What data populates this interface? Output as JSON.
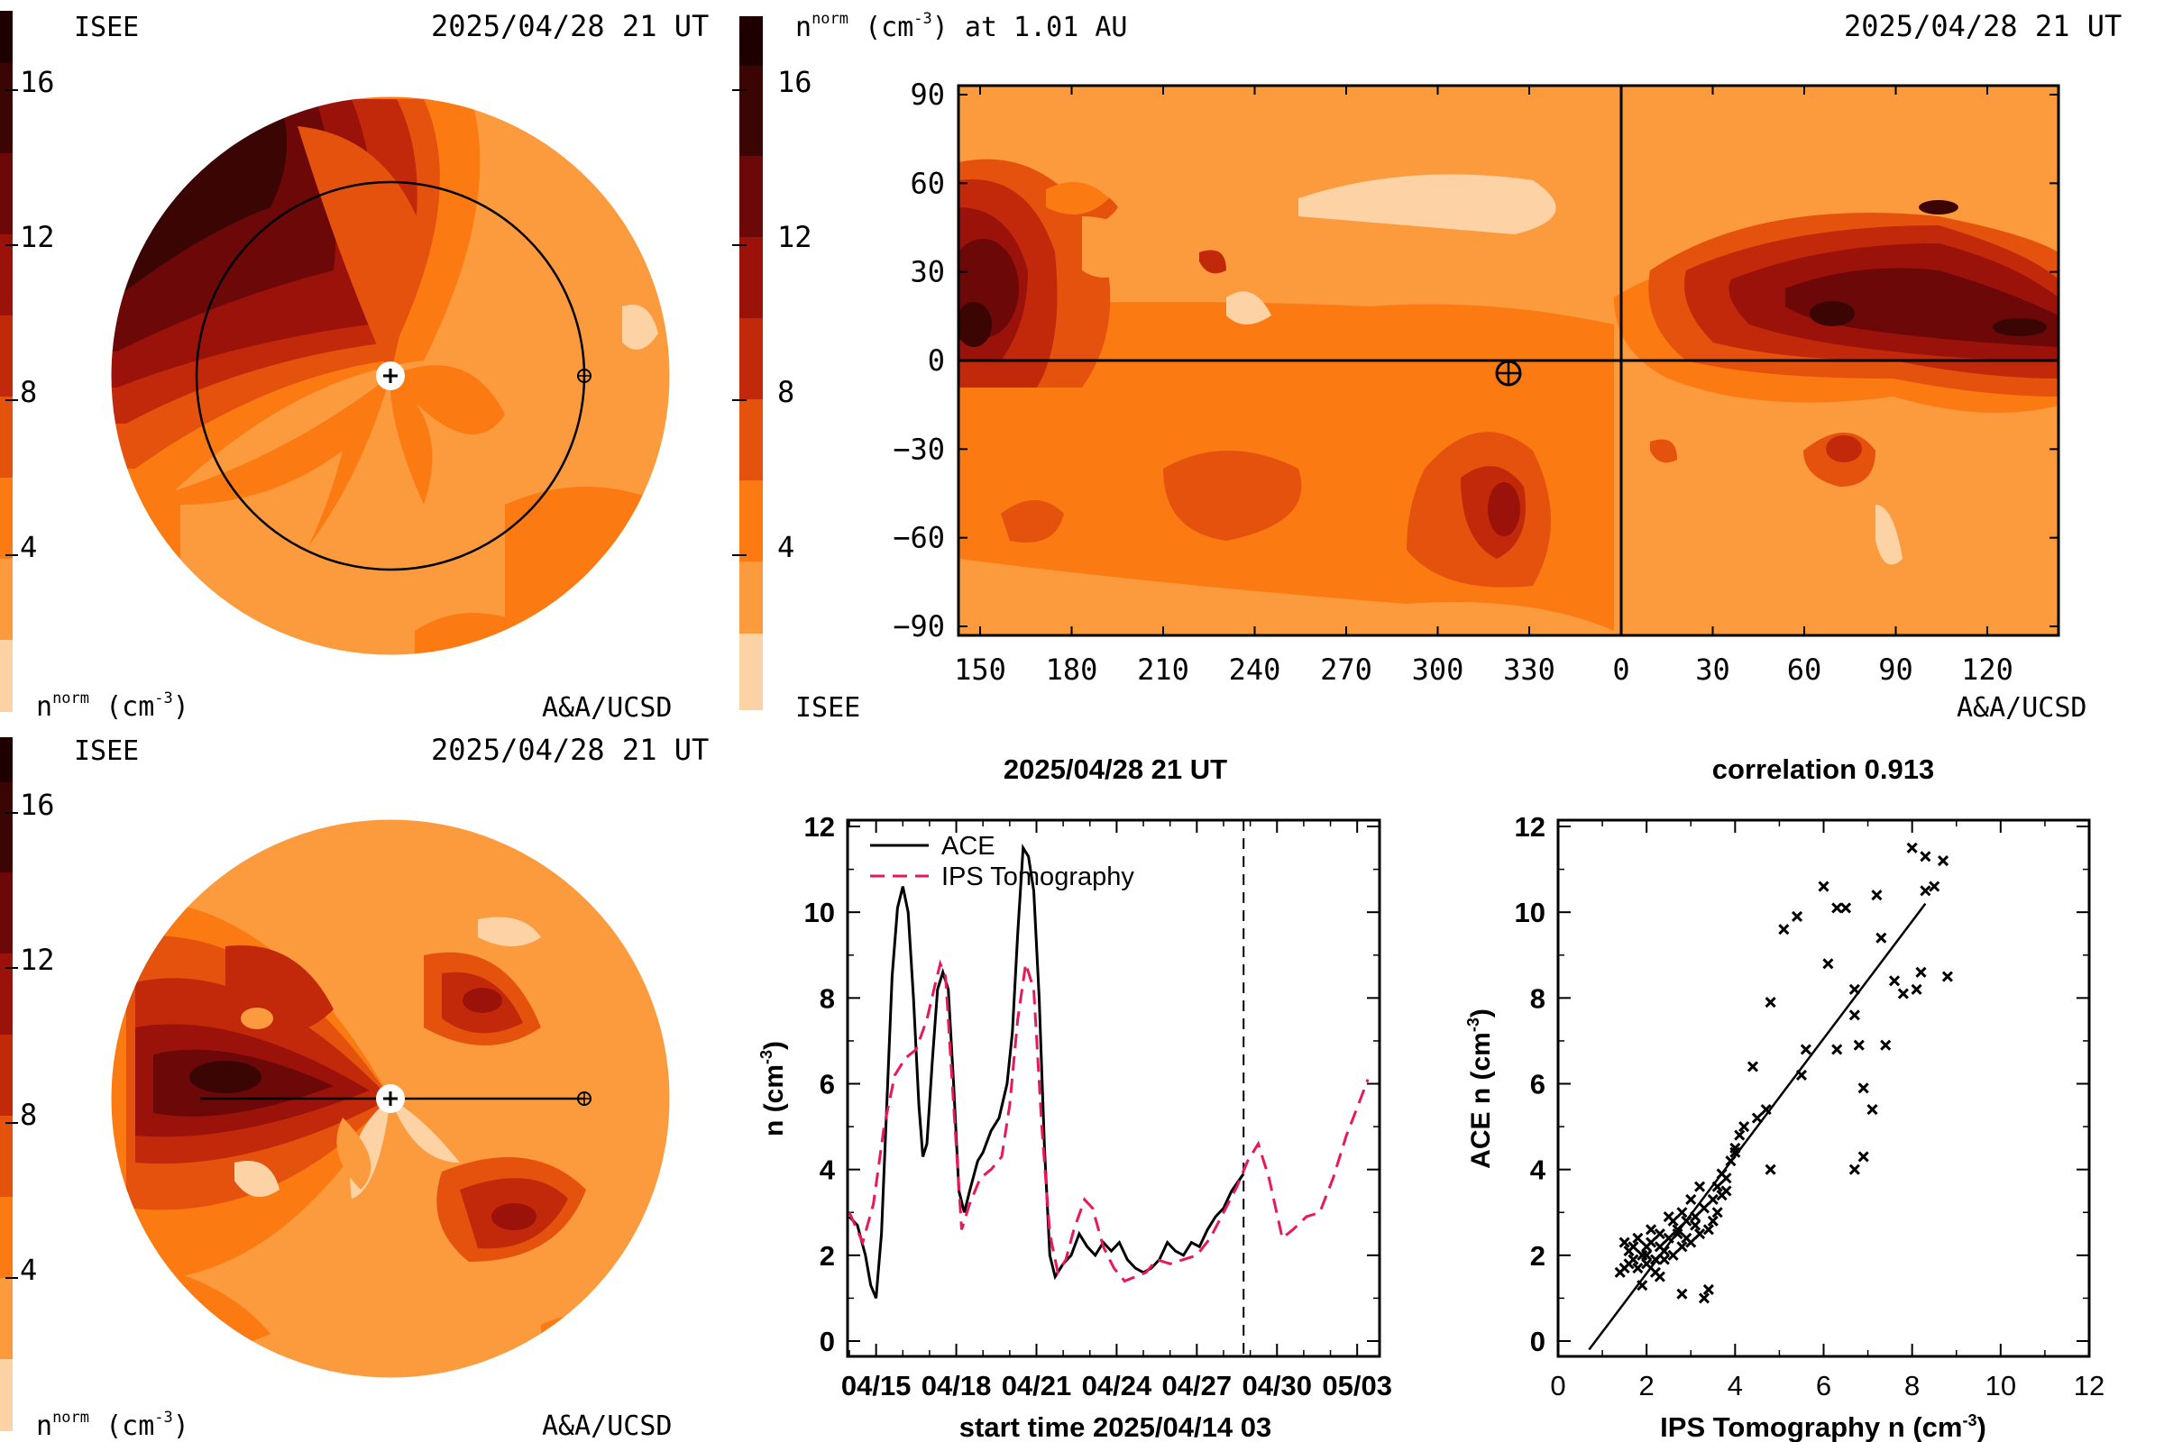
{
  "palette": [
    "#fdd3a6",
    "#fcad61",
    "#fc9a3e",
    "#fb7a12",
    "#e4520e",
    "#c2290b",
    "#9b120a",
    "#6c0807",
    "#3a0503",
    "#1f0000"
  ],
  "colorbar": {
    "ticks": [
      "4",
      "8",
      "12",
      "16"
    ],
    "top_left_label": "ISEE",
    "unit_label_prefix": "n",
    "unit_label_sup": "norm",
    "unit_label_suffix": " (cm",
    "unit_label_exp": "-3",
    "unit_label_close": ")"
  },
  "panel_tl": {
    "brand": "ISEE",
    "date": "2025/04/28 21 UT",
    "credit": "A&A/UCSD",
    "unit_prefix": "n",
    "unit_sup": "norm",
    "unit_suffix": " (cm",
    "unit_exp": "-3",
    "unit_close": ")"
  },
  "panel_bl": {
    "brand": "ISEE",
    "date": "2025/04/28 21 UT",
    "credit": "A&A/UCSD",
    "unit_prefix": "n",
    "unit_sup": "norm",
    "unit_suffix": " (cm",
    "unit_exp": "-3",
    "unit_close": ")"
  },
  "panel_map": {
    "title_prefix": "n",
    "title_sup": "norm",
    "title_suffix": " (cm",
    "title_exp": "-3",
    "title_tail": ") at 1.01 AU",
    "date": "2025/04/28 21 UT",
    "brand_bottom": "ISEE",
    "credit": "A&A/UCSD",
    "xticks": [
      "150",
      "180",
      "210",
      "240",
      "270",
      "300",
      "330",
      "0",
      "30",
      "60",
      "90",
      "120"
    ],
    "yticks": [
      "90",
      "60",
      "30",
      "0",
      "−30",
      "−60",
      "−90"
    ]
  },
  "chart_data": [
    {
      "type": "line",
      "title": "2025/04/28 21 UT",
      "xlabel": "start time 2025/04/14 03",
      "ylabel_prefix": "n (cm",
      "ylabel_exp": "-3",
      "ylabel_close": ")",
      "xticks": [
        "04/15",
        "04/18",
        "04/21",
        "04/24",
        "04/27",
        "04/30",
        "05/03"
      ],
      "yticks": [
        "0",
        "2",
        "4",
        "6",
        "8",
        "10",
        "12"
      ],
      "ylim": [
        0,
        12
      ],
      "xlim_days": [
        0,
        19.5
      ],
      "now_day": 14.75,
      "series": [
        {
          "name": "ACE",
          "color": "#000000",
          "style": "solid",
          "points": [
            [
              0,
              2.9
            ],
            [
              0.3,
              2.7
            ],
            [
              0.6,
              2.0
            ],
            [
              0.8,
              1.3
            ],
            [
              1.0,
              1.0
            ],
            [
              1.2,
              2.5
            ],
            [
              1.4,
              5.5
            ],
            [
              1.6,
              8.5
            ],
            [
              1.8,
              10.1
            ],
            [
              2.0,
              10.6
            ],
            [
              2.2,
              10.0
            ],
            [
              2.4,
              8.0
            ],
            [
              2.6,
              5.5
            ],
            [
              2.75,
              4.3
            ],
            [
              2.9,
              4.6
            ],
            [
              3.1,
              6.5
            ],
            [
              3.3,
              8.2
            ],
            [
              3.5,
              8.6
            ],
            [
              3.7,
              8.2
            ],
            [
              3.9,
              6.0
            ],
            [
              4.1,
              3.5
            ],
            [
              4.3,
              3.0
            ],
            [
              4.5,
              3.5
            ],
            [
              4.8,
              4.2
            ],
            [
              5.0,
              4.4
            ],
            [
              5.3,
              4.9
            ],
            [
              5.6,
              5.2
            ],
            [
              5.9,
              6.0
            ],
            [
              6.1,
              7.2
            ],
            [
              6.3,
              9.5
            ],
            [
              6.5,
              11.5
            ],
            [
              6.7,
              11.3
            ],
            [
              6.9,
              10.5
            ],
            [
              7.1,
              8.0
            ],
            [
              7.3,
              4.5
            ],
            [
              7.5,
              2.0
            ],
            [
              7.7,
              1.5
            ],
            [
              8.0,
              1.8
            ],
            [
              8.3,
              2.0
            ],
            [
              8.6,
              2.5
            ],
            [
              8.9,
              2.2
            ],
            [
              9.2,
              2.0
            ],
            [
              9.5,
              2.3
            ],
            [
              9.8,
              2.1
            ],
            [
              10.1,
              2.3
            ],
            [
              10.4,
              1.9
            ],
            [
              10.7,
              1.7
            ],
            [
              11.0,
              1.6
            ],
            [
              11.3,
              1.7
            ],
            [
              11.6,
              1.9
            ],
            [
              11.9,
              2.3
            ],
            [
              12.2,
              2.1
            ],
            [
              12.5,
              2.0
            ],
            [
              12.8,
              2.3
            ],
            [
              13.1,
              2.2
            ],
            [
              13.4,
              2.6
            ],
            [
              13.7,
              2.9
            ],
            [
              14.0,
              3.1
            ],
            [
              14.3,
              3.5
            ],
            [
              14.75,
              3.9
            ]
          ]
        },
        {
          "name": "IPS Tomography",
          "color": "#e8195a",
          "style": "dashed",
          "points": [
            [
              0,
              3.0
            ],
            [
              0.5,
              2.3
            ],
            [
              0.9,
              3.2
            ],
            [
              1.3,
              5.0
            ],
            [
              1.7,
              6.2
            ],
            [
              2.1,
              6.6
            ],
            [
              2.5,
              6.8
            ],
            [
              2.9,
              7.5
            ],
            [
              3.2,
              8.3
            ],
            [
              3.4,
              8.8
            ],
            [
              3.6,
              8.5
            ],
            [
              3.9,
              5.5
            ],
            [
              4.2,
              2.6
            ],
            [
              4.5,
              3.2
            ],
            [
              4.9,
              3.8
            ],
            [
              5.3,
              4.0
            ],
            [
              5.7,
              4.3
            ],
            [
              6.0,
              5.5
            ],
            [
              6.3,
              7.5
            ],
            [
              6.6,
              8.8
            ],
            [
              6.9,
              8.2
            ],
            [
              7.2,
              5.0
            ],
            [
              7.5,
              2.5
            ],
            [
              7.8,
              1.6
            ],
            [
              8.1,
              1.9
            ],
            [
              8.4,
              2.6
            ],
            [
              8.8,
              3.3
            ],
            [
              9.1,
              3.1
            ],
            [
              9.5,
              2.2
            ],
            [
              9.9,
              1.7
            ],
            [
              10.3,
              1.4
            ],
            [
              10.7,
              1.5
            ],
            [
              11.1,
              1.6
            ],
            [
              11.5,
              1.9
            ],
            [
              12.0,
              1.8
            ],
            [
              12.5,
              1.9
            ],
            [
              13.0,
              2.0
            ],
            [
              13.5,
              2.4
            ],
            [
              14.0,
              3.0
            ],
            [
              14.5,
              3.6
            ],
            [
              14.9,
              4.2
            ],
            [
              15.3,
              4.6
            ],
            [
              15.7,
              3.8
            ],
            [
              16.2,
              2.4
            ],
            [
              16.6,
              2.6
            ],
            [
              17.1,
              2.9
            ],
            [
              17.6,
              3.0
            ],
            [
              18.1,
              3.8
            ],
            [
              18.6,
              4.8
            ],
            [
              19.1,
              5.6
            ],
            [
              19.4,
              6.1
            ]
          ]
        }
      ]
    },
    {
      "type": "scatter",
      "title": "correlation 0.913",
      "xlabel_prefix": "IPS Tomography n (cm",
      "xlabel_exp": "-3",
      "xlabel_close": ")",
      "ylabel_prefix": "ACE n (cm",
      "ylabel_exp": "-3",
      "ylabel_close": ")",
      "xticks": [
        "0",
        "2",
        "4",
        "6",
        "8",
        "10",
        "12"
      ],
      "yticks": [
        "0",
        "2",
        "4",
        "6",
        "8",
        "10",
        "12"
      ],
      "xlim": [
        0,
        12
      ],
      "ylim": [
        0,
        12
      ],
      "fit_line": [
        [
          0.7,
          -0.2
        ],
        [
          8.3,
          10.2
        ]
      ],
      "points": [
        [
          1.4,
          1.6
        ],
        [
          1.5,
          2.3
        ],
        [
          1.6,
          1.8
        ],
        [
          1.7,
          2.2
        ],
        [
          1.8,
          1.7
        ],
        [
          1.9,
          2.0
        ],
        [
          2.0,
          1.8
        ],
        [
          2.1,
          2.3
        ],
        [
          2.2,
          1.9
        ],
        [
          2.3,
          2.5
        ],
        [
          2.4,
          2.1
        ],
        [
          2.5,
          2.4
        ],
        [
          2.6,
          2.0
        ],
        [
          2.7,
          2.6
        ],
        [
          2.8,
          2.2
        ],
        [
          2.9,
          2.8
        ],
        [
          3.0,
          2.3
        ],
        [
          3.1,
          2.9
        ],
        [
          3.2,
          2.5
        ],
        [
          3.3,
          3.1
        ],
        [
          3.4,
          2.6
        ],
        [
          3.5,
          3.3
        ],
        [
          3.6,
          3.0
        ],
        [
          3.7,
          3.4
        ],
        [
          3.8,
          3.8
        ],
        [
          3.9,
          4.2
        ],
        [
          4.0,
          4.4
        ],
        [
          4.1,
          4.8
        ],
        [
          4.2,
          5.0
        ],
        [
          4.5,
          5.2
        ],
        [
          4.7,
          5.4
        ],
        [
          1.5,
          1.7
        ],
        [
          1.6,
          2.1
        ],
        [
          1.8,
          2.4
        ],
        [
          2.0,
          2.2
        ],
        [
          2.2,
          1.6
        ],
        [
          2.4,
          1.9
        ],
        [
          2.6,
          2.8
        ],
        [
          2.8,
          3.0
        ],
        [
          3.0,
          3.3
        ],
        [
          3.2,
          3.6
        ],
        [
          3.4,
          1.2
        ],
        [
          3.3,
          1.0
        ],
        [
          2.8,
          1.1
        ],
        [
          2.3,
          1.5
        ],
        [
          1.9,
          1.3
        ],
        [
          4.8,
          4.0
        ],
        [
          4.4,
          6.4
        ],
        [
          5.1,
          9.6
        ],
        [
          5.4,
          9.9
        ],
        [
          5.6,
          6.8
        ],
        [
          5.5,
          6.2
        ],
        [
          4.8,
          7.9
        ],
        [
          6.0,
          10.6
        ],
        [
          6.3,
          10.1
        ],
        [
          6.5,
          10.1
        ],
        [
          6.1,
          8.8
        ],
        [
          6.3,
          6.8
        ],
        [
          6.7,
          8.2
        ],
        [
          6.8,
          6.9
        ],
        [
          6.7,
          7.6
        ],
        [
          6.9,
          5.9
        ],
        [
          6.9,
          4.3
        ],
        [
          6.7,
          4.0
        ],
        [
          7.1,
          5.4
        ],
        [
          7.2,
          10.4
        ],
        [
          7.3,
          9.4
        ],
        [
          7.4,
          6.9
        ],
        [
          7.6,
          8.4
        ],
        [
          7.8,
          8.1
        ],
        [
          8.0,
          11.5
        ],
        [
          8.2,
          8.6
        ],
        [
          8.1,
          8.2
        ],
        [
          8.3,
          10.5
        ],
        [
          8.3,
          11.3
        ],
        [
          8.5,
          10.6
        ],
        [
          8.7,
          11.2
        ],
        [
          8.8,
          8.5
        ],
        [
          3.6,
          3.6
        ],
        [
          3.8,
          3.5
        ],
        [
          4.0,
          4.5
        ],
        [
          2.1,
          2.6
        ],
        [
          2.5,
          2.9
        ],
        [
          2.9,
          2.4
        ],
        [
          3.5,
          2.8
        ],
        [
          1.7,
          1.9
        ],
        [
          2.0,
          2.0
        ],
        [
          2.3,
          2.2
        ],
        [
          2.7,
          2.5
        ],
        [
          3.1,
          2.7
        ],
        [
          3.7,
          3.9
        ]
      ]
    }
  ]
}
